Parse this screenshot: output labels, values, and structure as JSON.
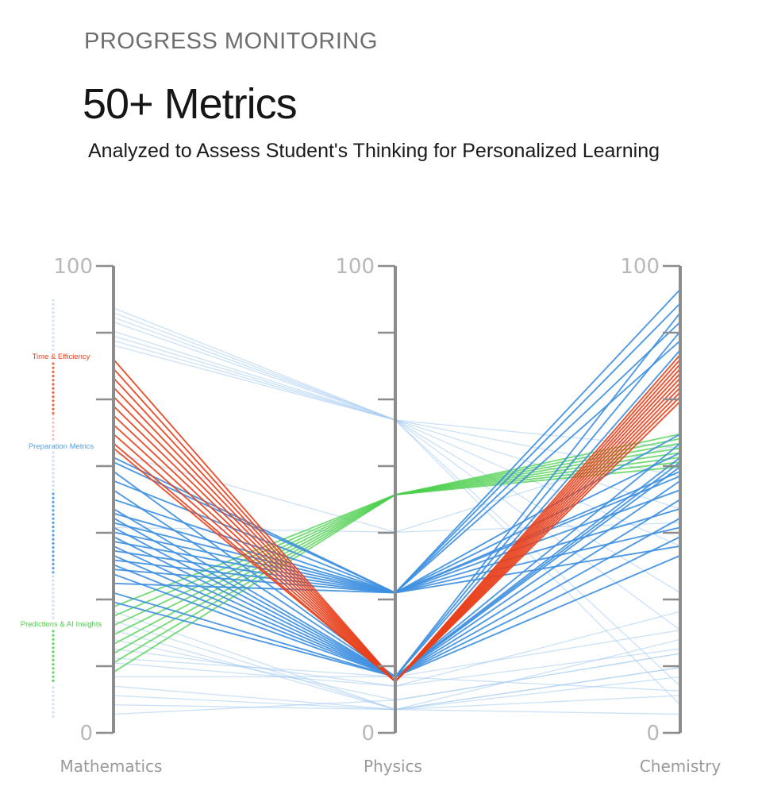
{
  "header": {
    "eyebrow": "PROGRESS MONITORING",
    "headline": "50+ Metrics",
    "subheadline": "Analyzed to Assess Student's Thinking for Personalized Learning"
  },
  "colors": {
    "time_efficiency": "#e8401c",
    "preparation": "#3d8fe0",
    "predictions": "#4ccf4c",
    "faint": "#a9cdf2",
    "axis": "#8c8c8c",
    "tick_label": "#b8b8b8"
  },
  "chart_data": {
    "type": "parallel-coordinates",
    "axes": [
      "Mathematics",
      "Physics",
      "Chemistry"
    ],
    "range": [
      0,
      100
    ],
    "tick_labels": {
      "top": "100",
      "bottom": "0"
    },
    "groups": [
      {
        "name": "Time & Efficiency",
        "color": "#e8401c"
      },
      {
        "name": "Preparation Metrics",
        "color": "#3d8fe0"
      },
      {
        "name": "Predictions & AI Insights",
        "color": "#4ccf4c"
      }
    ],
    "series": [
      {
        "group": "faint",
        "values": [
          91,
          67,
          61
        ]
      },
      {
        "group": "faint",
        "values": [
          90,
          67,
          55
        ]
      },
      {
        "group": "faint",
        "values": [
          89,
          67,
          48
        ]
      },
      {
        "group": "faint",
        "values": [
          88,
          67,
          40
        ]
      },
      {
        "group": "faint",
        "values": [
          86,
          67,
          30
        ]
      },
      {
        "group": "faint",
        "values": [
          85,
          67,
          22
        ]
      },
      {
        "group": "faint",
        "values": [
          84,
          67,
          10
        ]
      },
      {
        "group": "faint",
        "values": [
          83,
          67,
          6
        ]
      },
      {
        "group": "faint",
        "values": [
          60,
          43,
          62
        ]
      },
      {
        "group": "faint",
        "values": [
          44,
          43,
          45
        ]
      },
      {
        "group": "faint",
        "values": [
          26,
          5,
          4
        ]
      },
      {
        "group": "faint",
        "values": [
          24,
          5,
          8
        ]
      },
      {
        "group": "faint",
        "values": [
          22,
          5,
          14
        ]
      },
      {
        "group": "faint",
        "values": [
          20,
          7,
          17
        ]
      },
      {
        "group": "faint",
        "values": [
          18,
          10,
          26
        ]
      },
      {
        "group": "faint",
        "values": [
          15,
          10,
          18
        ]
      },
      {
        "group": "faint",
        "values": [
          12,
          12,
          9
        ]
      },
      {
        "group": "faint",
        "values": [
          10,
          5,
          12
        ]
      },
      {
        "group": "faint",
        "values": [
          8,
          5,
          14
        ]
      },
      {
        "group": "faint",
        "values": [
          6,
          5,
          20
        ]
      },
      {
        "group": "faint",
        "values": [
          4,
          7,
          17
        ]
      },
      {
        "group": "faint",
        "values": [
          16,
          12,
          22
        ]
      },
      {
        "group": "Predictions & AI Insights",
        "values": [
          13,
          51,
          64
        ]
      },
      {
        "group": "Predictions & AI Insights",
        "values": [
          15,
          51,
          63
        ]
      },
      {
        "group": "Predictions & AI Insights",
        "values": [
          17,
          51,
          62
        ]
      },
      {
        "group": "Predictions & AI Insights",
        "values": [
          19,
          51,
          61
        ]
      },
      {
        "group": "Predictions & AI Insights",
        "values": [
          21,
          51,
          60
        ]
      },
      {
        "group": "Predictions & AI Insights",
        "values": [
          23,
          51,
          59
        ]
      },
      {
        "group": "Predictions & AI Insights",
        "values": [
          25,
          51,
          58
        ]
      },
      {
        "group": "Predictions & AI Insights",
        "values": [
          27,
          51,
          57
        ]
      },
      {
        "group": "Preparation Metrics",
        "values": [
          59,
          30,
          95
        ]
      },
      {
        "group": "Preparation Metrics",
        "values": [
          58,
          30,
          92
        ]
      },
      {
        "group": "Preparation Metrics",
        "values": [
          56,
          12,
          90
        ]
      },
      {
        "group": "Preparation Metrics",
        "values": [
          54,
          30,
          88
        ]
      },
      {
        "group": "Preparation Metrics",
        "values": [
          52,
          12,
          86
        ]
      },
      {
        "group": "Preparation Metrics",
        "values": [
          50,
          30,
          84
        ]
      },
      {
        "group": "Preparation Metrics",
        "values": [
          48,
          12,
          82
        ]
      },
      {
        "group": "Preparation Metrics",
        "values": [
          47,
          30,
          64
        ]
      },
      {
        "group": "Preparation Metrics",
        "values": [
          46,
          12,
          62
        ]
      },
      {
        "group": "Preparation Metrics",
        "values": [
          45,
          30,
          60
        ]
      },
      {
        "group": "Preparation Metrics",
        "values": [
          44,
          12,
          58
        ]
      },
      {
        "group": "Preparation Metrics",
        "values": [
          43,
          30,
          56
        ]
      },
      {
        "group": "Preparation Metrics",
        "values": [
          42,
          12,
          54
        ]
      },
      {
        "group": "Preparation Metrics",
        "values": [
          41,
          30,
          52
        ]
      },
      {
        "group": "Preparation Metrics",
        "values": [
          40,
          12,
          50
        ]
      },
      {
        "group": "Preparation Metrics",
        "values": [
          39,
          30,
          48
        ]
      },
      {
        "group": "Preparation Metrics",
        "values": [
          38,
          12,
          46
        ]
      },
      {
        "group": "Preparation Metrics",
        "values": [
          37,
          30,
          44
        ]
      },
      {
        "group": "Preparation Metrics",
        "values": [
          36,
          12,
          42
        ]
      },
      {
        "group": "Preparation Metrics",
        "values": [
          35,
          30,
          40
        ]
      },
      {
        "group": "Preparation Metrics",
        "values": [
          34,
          12,
          38
        ]
      },
      {
        "group": "Preparation Metrics",
        "values": [
          32,
          30,
          55
        ]
      },
      {
        "group": "Preparation Metrics",
        "values": [
          30,
          12,
          57
        ]
      },
      {
        "group": "Preparation Metrics",
        "values": [
          28,
          12,
          59
        ]
      },
      {
        "group": "Time & Efficiency",
        "values": [
          80,
          11,
          81
        ]
      },
      {
        "group": "Time & Efficiency",
        "values": [
          78,
          11,
          80
        ]
      },
      {
        "group": "Time & Efficiency",
        "values": [
          76,
          11,
          79
        ]
      },
      {
        "group": "Time & Efficiency",
        "values": [
          74,
          11,
          78
        ]
      },
      {
        "group": "Time & Efficiency",
        "values": [
          72,
          11,
          77
        ]
      },
      {
        "group": "Time & Efficiency",
        "values": [
          70,
          11,
          76
        ]
      },
      {
        "group": "Time & Efficiency",
        "values": [
          68,
          11,
          75
        ]
      },
      {
        "group": "Time & Efficiency",
        "values": [
          66,
          11,
          74
        ]
      },
      {
        "group": "Time & Efficiency",
        "values": [
          64,
          11,
          73
        ]
      },
      {
        "group": "Time & Efficiency",
        "values": [
          62,
          11,
          72
        ]
      },
      {
        "group": "Time & Efficiency",
        "values": [
          61,
          11,
          71
        ]
      }
    ]
  }
}
